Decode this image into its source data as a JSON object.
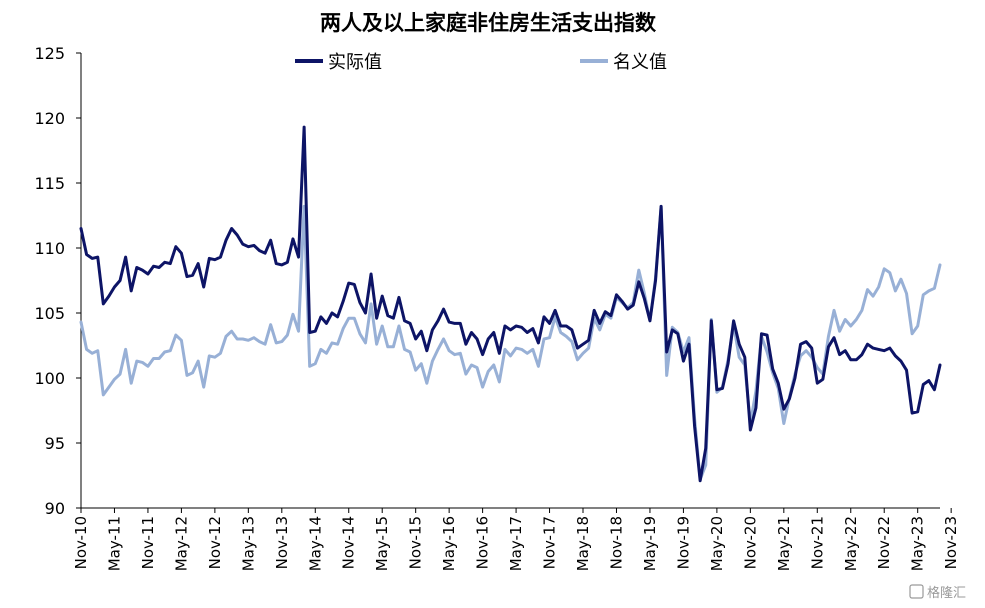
{
  "chart_data": {
    "type": "line",
    "title": "两人及以上家庭非住房生活支出指数",
    "xlabel": "",
    "ylabel": "",
    "ylim": [
      90,
      125
    ],
    "yticks": [
      90,
      95,
      100,
      105,
      110,
      115,
      120,
      125
    ],
    "x_tick_labels": [
      "Nov-10",
      "May-11",
      "Nov-11",
      "May-12",
      "Nov-12",
      "May-13",
      "Nov-13",
      "May-14",
      "Nov-14",
      "May-15",
      "Nov-15",
      "May-16",
      "Nov-16",
      "May-17",
      "Nov-17",
      "May-18",
      "Nov-18",
      "May-19",
      "Nov-19",
      "May-20",
      "Nov-20",
      "May-21",
      "Nov-21",
      "May-22",
      "Nov-22",
      "May-23",
      "Nov-23"
    ],
    "legend_position": "top",
    "grid": false,
    "colors": {
      "real": "#0d1466",
      "nominal": "#98b0d6",
      "axis": "#000000"
    },
    "series": [
      {
        "name": "实际值",
        "key": "real",
        "values": [
          111.5,
          109.5,
          109.2,
          109.3,
          105.7,
          106.3,
          107,
          107.5,
          109.3,
          106.7,
          108.5,
          108.3,
          108,
          108.6,
          108.5,
          108.9,
          108.8,
          110.1,
          109.6,
          107.8,
          107.9,
          108.8,
          107.0,
          109.2,
          109.1,
          109.3,
          110.6,
          111.5,
          111.0,
          110.3,
          110.1,
          110.2,
          109.8,
          109.6,
          110.6,
          108.8,
          108.7,
          108.9,
          110.7,
          109.3,
          119.3,
          103.5,
          103.6,
          104.7,
          104.2,
          105.0,
          104.7,
          105.9,
          107.3,
          107.2,
          105.8,
          105.0,
          108.0,
          104.6,
          106.3,
          104.8,
          104.6,
          106.2,
          104.4,
          104.2,
          103.0,
          103.6,
          102.1,
          103.7,
          104.4,
          105.3,
          104.3,
          104.2,
          104.2,
          102.6,
          103.5,
          103.0,
          101.8,
          103.0,
          103.5,
          101.9,
          104.0,
          103.7,
          104.0,
          103.9,
          103.5,
          103.8,
          102.7,
          104.7,
          104.2,
          105.2,
          104.0,
          104.0,
          103.7,
          102.3,
          102.6,
          102.9,
          105.2,
          104.2,
          105.1,
          104.8,
          106.4,
          105.9,
          105.3,
          105.6,
          107.4,
          106.1,
          104.4,
          107.5,
          113.2,
          102.0,
          103.7,
          103.4,
          101.3,
          102.6,
          96.3,
          92.1,
          94.6,
          104.4,
          99.1,
          99.2,
          101.1,
          104.4,
          102.6,
          101.6,
          96.0,
          97.7,
          103.4,
          103.3,
          100.7,
          99.6,
          97.6,
          98.4,
          100.0,
          102.6,
          102.8,
          102.3,
          99.6,
          99.9,
          102.4,
          103.1,
          101.8,
          102.1,
          101.4,
          101.4,
          101.8,
          102.6,
          102.3,
          102.2,
          102.1,
          102.3,
          101.7,
          101.3,
          100.6,
          97.3,
          97.4,
          99.5,
          99.8,
          99.1,
          101.0
        ]
      },
      {
        "name": "名义值",
        "key": "nominal",
        "values": [
          104.3,
          102.2,
          101.9,
          102.1,
          98.7,
          99.3,
          99.9,
          100.3,
          102.2,
          99.6,
          101.3,
          101.2,
          100.9,
          101.5,
          101.5,
          102.0,
          102.1,
          103.3,
          102.9,
          100.2,
          100.4,
          101.3,
          99.3,
          101.7,
          101.6,
          101.9,
          103.2,
          103.6,
          103.0,
          103.0,
          102.9,
          103.1,
          102.8,
          102.6,
          104.1,
          102.7,
          102.8,
          103.3,
          104.9,
          103.6,
          113.2,
          100.9,
          101.1,
          102.2,
          101.9,
          102.7,
          102.6,
          103.8,
          104.6,
          104.6,
          103.4,
          102.7,
          105.7,
          102.6,
          104.0,
          102.4,
          102.4,
          104.0,
          102.2,
          102.0,
          100.6,
          101.1,
          99.6,
          101.3,
          102.2,
          103.0,
          102.1,
          101.8,
          101.9,
          100.3,
          101.0,
          100.8,
          99.3,
          100.5,
          101.0,
          99.7,
          102.2,
          101.7,
          102.3,
          102.2,
          101.9,
          102.2,
          100.9,
          103.0,
          103.1,
          104.7,
          103.5,
          103.2,
          102.8,
          101.4,
          101.9,
          102.3,
          104.6,
          103.7,
          104.9,
          104.6,
          106.2,
          105.8,
          105.4,
          105.8,
          108.3,
          106.5,
          104.4,
          107.7,
          113.2,
          100.2,
          103.9,
          103.5,
          102.0,
          103.1,
          96.9,
          92.2,
          93.3,
          104.5,
          98.9,
          99.3,
          101.4,
          104.1,
          101.6,
          101.0,
          96.5,
          99.0,
          103.2,
          102.0,
          100.4,
          99.2,
          96.5,
          98.5,
          100.3,
          101.7,
          102.1,
          101.6,
          100.8,
          100.3,
          103.2,
          105.2,
          103.6,
          104.5,
          104.0,
          104.5,
          105.2,
          106.8,
          106.3,
          107.0,
          108.4,
          108.1,
          106.7,
          107.6,
          106.5,
          103.4,
          104.0,
          106.4,
          106.7,
          106.9,
          108.7
        ]
      }
    ]
  },
  "watermark": "格隆汇"
}
